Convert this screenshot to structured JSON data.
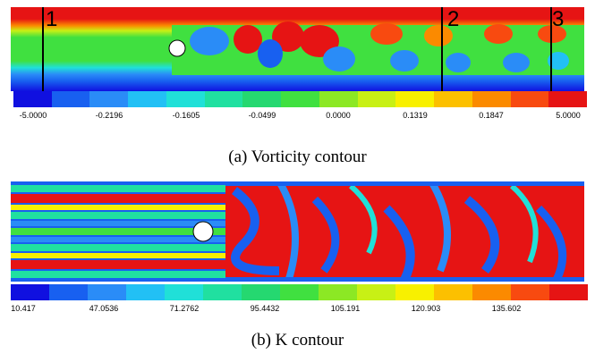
{
  "figure_a": {
    "caption": "(a) Vorticity contour",
    "probe_labels": [
      "1",
      "2",
      "3"
    ],
    "colorbar_ticks": [
      "-5.0000",
      "-0.2196",
      "-0.1605",
      "-0.0499",
      "0.0000",
      "0.1319",
      "0.1847",
      "5.0000"
    ],
    "colorbar_colors": [
      "#1010e0",
      "#1860f0",
      "#2a8cf7",
      "#22c0f5",
      "#20e0d8",
      "#20e0a0",
      "#25d870",
      "#40e040",
      "#8ce824",
      "#c8f015",
      "#f8f000",
      "#fcc000",
      "#fb8a00",
      "#f84a10",
      "#e61414"
    ]
  },
  "figure_b": {
    "caption": "(b) K contour",
    "colorbar_ticks": [
      "10.417",
      "47.0536",
      "71.2762",
      "95.4432",
      "105.191",
      "120.903",
      "135.602"
    ],
    "colorbar_colors": [
      "#1010e0",
      "#1860f0",
      "#2a8cf7",
      "#22c0f5",
      "#20e0d8",
      "#20e0a0",
      "#25d870",
      "#40e040",
      "#8ce824",
      "#c8f015",
      "#f8f000",
      "#fcc000",
      "#fb8a00",
      "#f84a10",
      "#e61414"
    ]
  }
}
